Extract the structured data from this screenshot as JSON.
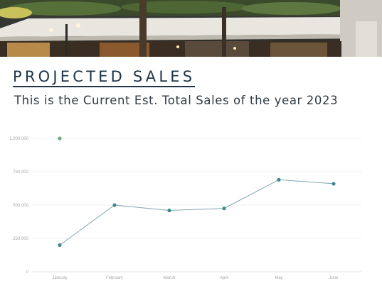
{
  "slide": {
    "title": "PROJECTED SALES",
    "subtitle": "This is the Current Est. Total Sales of the year 2023"
  },
  "colors": {
    "title": "#1f3446",
    "line": "#7ea7b2",
    "point": "#3d8a8c",
    "outlier_point": "#6fa87a",
    "grid": "#e8eaec",
    "tick_text": "#a0a6ac"
  },
  "chart_data": {
    "type": "line",
    "categories": [
      "January",
      "February",
      "March",
      "April",
      "May",
      "June"
    ],
    "series": [
      {
        "values": [
          200000,
          500000,
          460000,
          475000,
          690000,
          660000
        ]
      }
    ],
    "extra_points": [
      {
        "category": "January",
        "value": 1000000
      }
    ],
    "yticks": [
      0,
      250000,
      500000,
      750000,
      1000000
    ],
    "ytick_labels": [
      "0",
      "250,000",
      "500,000",
      "750,000",
      "1,000,000"
    ],
    "ylim": [
      0,
      1000000
    ],
    "title": "",
    "xlabel": "",
    "ylabel": "",
    "grid": true,
    "legend": "none"
  }
}
